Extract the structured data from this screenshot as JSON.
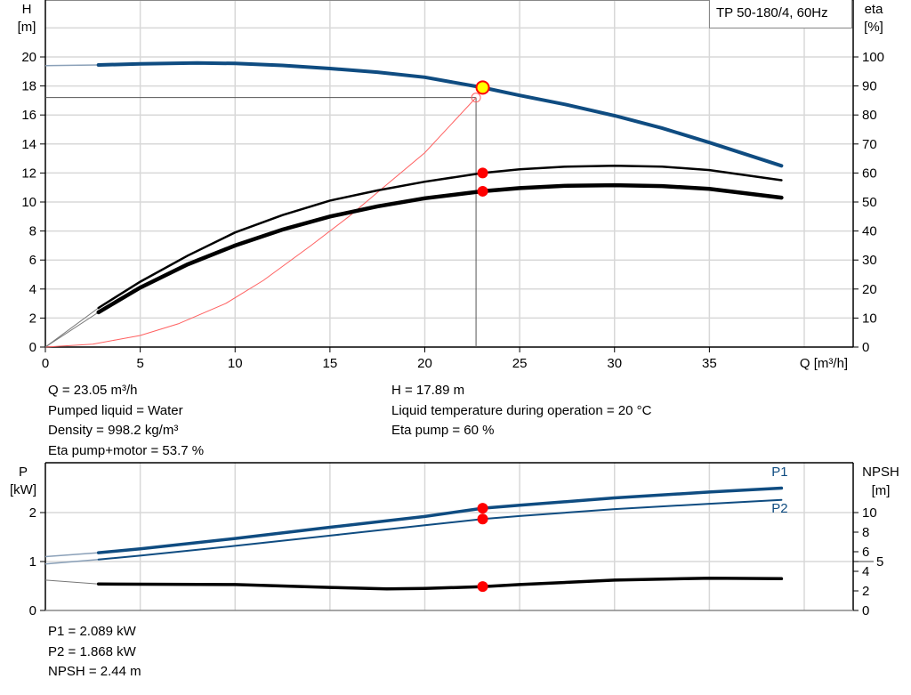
{
  "legend_title": "TP 50-180/4, 60Hz",
  "info_top_left": [
    "Q = 23.05 m³/h",
    "Pumped liquid = Water",
    "Density = 998.2 kg/m³",
    "Eta pump+motor = 53.7 %"
  ],
  "info_top_right": [
    "H = 17.89 m",
    "Liquid temperature during operation = 20 °C",
    "Eta pump = 60 %"
  ],
  "info_bottom": [
    "P1 = 2.089 kW",
    "P2 = 1.868 kW",
    "NPSH = 2.44 m"
  ],
  "colors": {
    "head": "#0f4c81",
    "power": "#0f4c81",
    "efficiency": "#000000",
    "system": "#ff6060",
    "marker": "#ff0000",
    "duty_point": "#ffff00",
    "grid": "#d8d8d8"
  },
  "chart_data": [
    {
      "type": "line",
      "xlabel": "Q [m³/h]",
      "ylabel": "H\n[m]",
      "ylabel_right": "eta\n[%]",
      "xlim": [
        0,
        42.6
      ],
      "ylim": [
        0,
        24
      ],
      "ylim_right": [
        0,
        120
      ],
      "xticks": [
        0,
        5,
        10,
        15,
        20,
        25,
        30,
        35
      ],
      "yticks": [
        0,
        2,
        4,
        6,
        8,
        10,
        12,
        14,
        16,
        18,
        20
      ],
      "yticks_right": [
        0,
        10,
        20,
        30,
        40,
        50,
        60,
        70,
        80,
        90,
        100
      ],
      "grid": true,
      "series": [
        {
          "axis": "left",
          "role": "head",
          "x": [
            2.8,
            5,
            8,
            10,
            12.5,
            15,
            17.5,
            20,
            23.05,
            25,
            27.5,
            30,
            32.5,
            35,
            38.8
          ],
          "y": [
            19.45,
            19.52,
            19.58,
            19.55,
            19.42,
            19.2,
            18.95,
            18.6,
            17.89,
            17.35,
            16.7,
            15.95,
            15.1,
            14.1,
            12.5
          ]
        },
        {
          "axis": "right",
          "role": "eta pump",
          "x": [
            2.8,
            5,
            7.5,
            10,
            12.5,
            15,
            17.5,
            20,
            23.05,
            25,
            27.5,
            30,
            32.5,
            35,
            38.8
          ],
          "y": [
            13.5,
            22.5,
            31.5,
            39.5,
            45.5,
            50.5,
            54.0,
            57.0,
            60.0,
            61.3,
            62.2,
            62.5,
            62.2,
            61.0,
            57.5
          ]
        },
        {
          "axis": "right",
          "role": "eta pump+motor",
          "x": [
            2.8,
            5,
            7.5,
            10,
            12.5,
            15,
            17.5,
            20,
            23.05,
            25,
            27.5,
            30,
            32.5,
            35,
            38.8
          ],
          "y": [
            12.0,
            20.5,
            28.5,
            35.0,
            40.5,
            45.0,
            48.5,
            51.3,
            53.7,
            54.8,
            55.6,
            55.8,
            55.5,
            54.5,
            51.5
          ]
        },
        {
          "axis": "left",
          "role": "system curve",
          "x": [
            0,
            2.5,
            5,
            7,
            9.5,
            11.5,
            14,
            16,
            18,
            20,
            22.7
          ],
          "y": [
            0,
            0.2,
            0.8,
            1.6,
            3.0,
            4.6,
            7.0,
            9.0,
            11.2,
            13.4,
            17.2
          ]
        }
      ],
      "duty_point": {
        "x": 23.05,
        "y": 17.89
      },
      "operating_point": {
        "x": 22.7,
        "y": 17.2
      }
    },
    {
      "type": "line",
      "ylabel": "P\n[kW]",
      "ylabel_right": "NPSH\n[m]",
      "xlim": [
        0,
        42.6
      ],
      "ylim": [
        0,
        3.0
      ],
      "ylim_right": [
        0,
        15
      ],
      "yticks": [
        0,
        1,
        2
      ],
      "yticks_right": [
        0,
        2,
        4,
        5,
        6,
        8,
        10
      ],
      "grid": true,
      "series": [
        {
          "name": "P1",
          "axis": "left",
          "x": [
            2.8,
            5,
            10,
            15,
            20,
            23.05,
            25,
            30,
            35,
            38.8
          ],
          "y": [
            1.18,
            1.26,
            1.47,
            1.7,
            1.92,
            2.089,
            2.15,
            2.3,
            2.42,
            2.5
          ]
        },
        {
          "name": "P2",
          "axis": "left",
          "x": [
            2.8,
            5,
            10,
            15,
            20,
            23.05,
            25,
            30,
            35,
            38.8
          ],
          "y": [
            1.04,
            1.12,
            1.32,
            1.53,
            1.74,
            1.868,
            1.93,
            2.07,
            2.18,
            2.26
          ]
        },
        {
          "axis": "right",
          "role": "NPSH",
          "x": [
            2.8,
            10,
            15,
            18,
            20,
            23.05,
            25,
            30,
            35,
            38.8
          ],
          "y": [
            2.7,
            2.65,
            2.35,
            2.2,
            2.25,
            2.44,
            2.65,
            3.1,
            3.3,
            3.25
          ]
        }
      ],
      "duty_points": {
        "P1": 2.089,
        "P2": 1.868,
        "NPSH": 2.44,
        "x": 23.05
      }
    }
  ]
}
